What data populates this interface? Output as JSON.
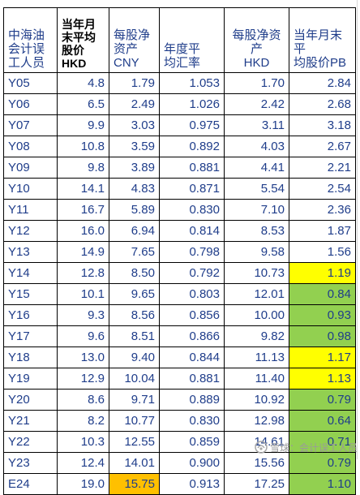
{
  "table": {
    "headers": [
      "中海油\n会计误\n工人员",
      "当年月\n末平均\n股价\nHKD",
      "每股净\n资产\nCNY",
      "年度平\n均汇率",
      "每股净资产\nHKD",
      "当年月末平\n均股价PB"
    ],
    "rows": [
      {
        "label": "Y05",
        "price": "4.8",
        "bvps_cny": "1.79",
        "fx": "1.053",
        "bvps_hkd": "1.70",
        "pb": "2.84",
        "hl_bvps": "",
        "hl_pb": ""
      },
      {
        "label": "Y06",
        "price": "6.5",
        "bvps_cny": "2.49",
        "fx": "1.026",
        "bvps_hkd": "2.42",
        "pb": "2.68",
        "hl_bvps": "",
        "hl_pb": ""
      },
      {
        "label": "Y07",
        "price": "9.9",
        "bvps_cny": "3.03",
        "fx": "0.975",
        "bvps_hkd": "3.11",
        "pb": "3.18",
        "hl_bvps": "",
        "hl_pb": ""
      },
      {
        "label": "Y08",
        "price": "10.8",
        "bvps_cny": "3.59",
        "fx": "0.892",
        "bvps_hkd": "4.03",
        "pb": "2.67",
        "hl_bvps": "",
        "hl_pb": ""
      },
      {
        "label": "Y09",
        "price": "9.8",
        "bvps_cny": "3.89",
        "fx": "0.881",
        "bvps_hkd": "4.41",
        "pb": "2.21",
        "hl_bvps": "",
        "hl_pb": ""
      },
      {
        "label": "Y10",
        "price": "14.1",
        "bvps_cny": "4.83",
        "fx": "0.871",
        "bvps_hkd": "5.54",
        "pb": "2.54",
        "hl_bvps": "",
        "hl_pb": ""
      },
      {
        "label": "Y11",
        "price": "16.7",
        "bvps_cny": "5.89",
        "fx": "0.830",
        "bvps_hkd": "7.10",
        "pb": "2.36",
        "hl_bvps": "",
        "hl_pb": ""
      },
      {
        "label": "Y12",
        "price": "16.0",
        "bvps_cny": "6.94",
        "fx": "0.814",
        "bvps_hkd": "8.53",
        "pb": "1.87",
        "hl_bvps": "",
        "hl_pb": ""
      },
      {
        "label": "Y13",
        "price": "14.9",
        "bvps_cny": "7.65",
        "fx": "0.798",
        "bvps_hkd": "9.58",
        "pb": "1.56",
        "hl_bvps": "",
        "hl_pb": ""
      },
      {
        "label": "Y14",
        "price": "12.8",
        "bvps_cny": "8.50",
        "fx": "0.792",
        "bvps_hkd": "10.73",
        "pb": "1.19",
        "hl_bvps": "",
        "hl_pb": "#ffff00"
      },
      {
        "label": "Y15",
        "price": "10.1",
        "bvps_cny": "9.65",
        "fx": "0.803",
        "bvps_hkd": "12.01",
        "pb": "0.84",
        "hl_bvps": "",
        "hl_pb": "#92d050"
      },
      {
        "label": "Y16",
        "price": "9.3",
        "bvps_cny": "8.56",
        "fx": "0.856",
        "bvps_hkd": "10.00",
        "pb": "0.93",
        "hl_bvps": "",
        "hl_pb": "#92d050"
      },
      {
        "label": "Y17",
        "price": "9.6",
        "bvps_cny": "8.51",
        "fx": "0.866",
        "bvps_hkd": "9.82",
        "pb": "0.98",
        "hl_bvps": "",
        "hl_pb": "#92d050"
      },
      {
        "label": "Y18",
        "price": "13.0",
        "bvps_cny": "9.40",
        "fx": "0.844",
        "bvps_hkd": "11.13",
        "pb": "1.17",
        "hl_bvps": "",
        "hl_pb": "#ffff00"
      },
      {
        "label": "Y19",
        "price": "12.9",
        "bvps_cny": "10.04",
        "fx": "0.881",
        "bvps_hkd": "11.40",
        "pb": "1.13",
        "hl_bvps": "",
        "hl_pb": "#ffff00"
      },
      {
        "label": "Y20",
        "price": "8.6",
        "bvps_cny": "9.71",
        "fx": "0.889",
        "bvps_hkd": "10.92",
        "pb": "0.79",
        "hl_bvps": "",
        "hl_pb": "#92d050"
      },
      {
        "label": "Y21",
        "price": "8.2",
        "bvps_cny": "10.77",
        "fx": "0.830",
        "bvps_hkd": "12.98",
        "pb": "0.64",
        "hl_bvps": "",
        "hl_pb": "#92d050"
      },
      {
        "label": "Y22",
        "price": "10.3",
        "bvps_cny": "12.55",
        "fx": "0.859",
        "bvps_hkd": "14.61",
        "pb": "0.71",
        "hl_bvps": "",
        "hl_pb": "#92d050"
      },
      {
        "label": "Y23",
        "price": "12.4",
        "bvps_cny": "14.01",
        "fx": "0.900",
        "bvps_hkd": "15.56",
        "pb": "0.79",
        "hl_bvps": "",
        "hl_pb": "#92d050"
      },
      {
        "label": "E24",
        "price": "19.0",
        "bvps_cny": "15.75",
        "fx": "0.913",
        "bvps_hkd": "17.25",
        "pb": "1.10",
        "hl_bvps": "#ffc000",
        "hl_pb": "#92d050"
      }
    ]
  },
  "watermark": {
    "icon": "snowball-logo-icon",
    "text": "雪球：会计误工人员"
  },
  "colors": {
    "text": "#1f3d8a",
    "yellow": "#ffff00",
    "green": "#92d050",
    "orange": "#ffc000"
  }
}
